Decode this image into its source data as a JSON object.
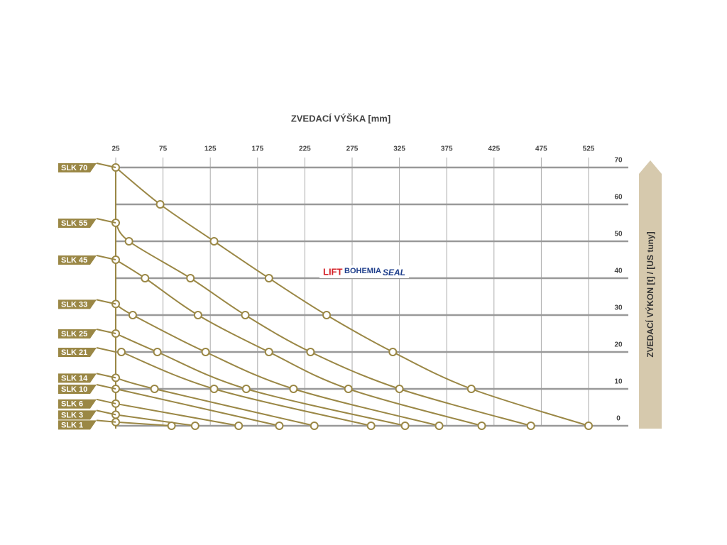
{
  "chart_data": {
    "type": "line",
    "title": "ZVEDACÍ VÝŠKA [mm]",
    "y_label": "ZVEDACÍ VÝKON [t] / [US tuny]",
    "logo": {
      "part1": "LIFT",
      "part2": "BOHEMIA",
      "part3": "SEAL"
    },
    "xlim": [
      25,
      525
    ],
    "xticks": [
      25,
      75,
      125,
      175,
      225,
      275,
      325,
      375,
      425,
      475,
      525
    ],
    "ylim": [
      0,
      70
    ],
    "yticks": [
      0,
      10,
      20,
      30,
      40,
      50,
      60,
      70
    ],
    "grid": true,
    "color": "#9a8745",
    "series": [
      {
        "name": "SLK 70",
        "x": [
          25,
          72,
          129,
          187,
          248,
          318,
          401,
          525
        ],
        "values": [
          70,
          60,
          50,
          40,
          30,
          20,
          10,
          0
        ]
      },
      {
        "name": "SLK 55",
        "x": [
          25,
          39,
          104,
          162,
          231,
          325,
          464
        ],
        "values": [
          55,
          50,
          40,
          30,
          20,
          10,
          0
        ]
      },
      {
        "name": "SLK 45",
        "x": [
          25,
          56,
          112,
          187,
          271,
          412
        ],
        "values": [
          45,
          40,
          30,
          20,
          10,
          0
        ]
      },
      {
        "name": "SLK 33",
        "x": [
          25,
          43,
          120,
          213,
          367
        ],
        "values": [
          33,
          30,
          20,
          10,
          0
        ]
      },
      {
        "name": "SLK 25",
        "x": [
          25,
          69,
          163,
          331
        ],
        "values": [
          25,
          20,
          10,
          0
        ]
      },
      {
        "name": "SLK 21",
        "x": [
          31,
          129,
          295
        ],
        "values": [
          20,
          10,
          0
        ]
      },
      {
        "name": "SLK 14",
        "x": [
          25,
          66,
          235
        ],
        "values": [
          13,
          10,
          0
        ]
      },
      {
        "name": "SLK 10",
        "x": [
          25,
          198
        ],
        "values": [
          10,
          0
        ]
      },
      {
        "name": "SLK 6",
        "x": [
          25,
          155
        ],
        "values": [
          6,
          0
        ]
      },
      {
        "name": "SLK 3",
        "x": [
          25,
          109
        ],
        "values": [
          3,
          0
        ]
      },
      {
        "name": "SLK 1",
        "x": [
          25,
          84
        ],
        "values": [
          1,
          0
        ]
      }
    ]
  }
}
